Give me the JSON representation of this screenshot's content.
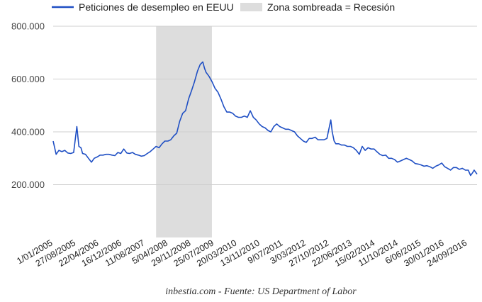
{
  "chart_data": {
    "type": "line",
    "title": "",
    "source_text": "inbestia.com - Fuente: US Department of Labor",
    "xlabel": "",
    "ylabel": "",
    "ylim": [
      0,
      800000
    ],
    "y_ticks": [
      {
        "value": 200000,
        "label": "200.000"
      },
      {
        "value": 400000,
        "label": "400.000"
      },
      {
        "value": 600000,
        "label": "600.000"
      },
      {
        "value": 800000,
        "label": "800.000"
      }
    ],
    "x_range": [
      "2005-01-01",
      "2016-12-31"
    ],
    "x_tick_labels": [
      {
        "date": "2005-01-01",
        "label": "1/01/2005"
      },
      {
        "date": "2005-08-27",
        "label": "27/08/2005"
      },
      {
        "date": "2006-04-22",
        "label": "22/04/2006"
      },
      {
        "date": "2006-12-16",
        "label": "16/12/2006"
      },
      {
        "date": "2007-08-11",
        "label": "11/08/2007"
      },
      {
        "date": "2008-04-05",
        "label": "5/04/2008"
      },
      {
        "date": "2008-11-29",
        "label": "29/11/2008"
      },
      {
        "date": "2009-07-25",
        "label": "25/07/2009"
      },
      {
        "date": "2010-03-20",
        "label": "20/03/2010"
      },
      {
        "date": "2010-11-13",
        "label": "13/11/2010"
      },
      {
        "date": "2011-07-09",
        "label": "9/07/2011"
      },
      {
        "date": "2012-03-03",
        "label": "3/03/2012"
      },
      {
        "date": "2012-10-27",
        "label": "27/10/2012"
      },
      {
        "date": "2013-06-22",
        "label": "22/06/2013"
      },
      {
        "date": "2014-02-15",
        "label": "15/02/2014"
      },
      {
        "date": "2014-10-11",
        "label": "11/10/2014"
      },
      {
        "date": "2015-06-06",
        "label": "6/06/2015"
      },
      {
        "date": "2016-01-30",
        "label": "30/01/2016"
      },
      {
        "date": "2016-09-24",
        "label": "24/09/2016"
      }
    ],
    "recession": {
      "start": "2007-12-01",
      "end": "2009-06-30",
      "label": "Zona sombreada = Recesión",
      "color": "#dddddd"
    },
    "grid": true,
    "legend_position": "top",
    "series": [
      {
        "name": "Peticiones de desempleo en EEUU",
        "color": "#1f4fc4",
        "points": [
          [
            "2005-01-01",
            365000
          ],
          [
            "2005-02-01",
            315000
          ],
          [
            "2005-03-01",
            330000
          ],
          [
            "2005-04-01",
            325000
          ],
          [
            "2005-05-01",
            330000
          ],
          [
            "2005-06-01",
            320000
          ],
          [
            "2005-07-01",
            318000
          ],
          [
            "2005-08-01",
            322000
          ],
          [
            "2005-09-03",
            420000
          ],
          [
            "2005-09-24",
            345000
          ],
          [
            "2005-10-15",
            340000
          ],
          [
            "2005-11-01",
            318000
          ],
          [
            "2005-12-01",
            315000
          ],
          [
            "2006-01-01",
            300000
          ],
          [
            "2006-02-01",
            285000
          ],
          [
            "2006-03-01",
            300000
          ],
          [
            "2006-04-01",
            305000
          ],
          [
            "2006-05-01",
            312000
          ],
          [
            "2006-06-01",
            312000
          ],
          [
            "2006-07-01",
            315000
          ],
          [
            "2006-08-01",
            315000
          ],
          [
            "2006-09-01",
            312000
          ],
          [
            "2006-10-01",
            310000
          ],
          [
            "2006-11-01",
            322000
          ],
          [
            "2006-12-01",
            318000
          ],
          [
            "2007-01-01",
            335000
          ],
          [
            "2007-02-01",
            320000
          ],
          [
            "2007-03-01",
            318000
          ],
          [
            "2007-04-01",
            322000
          ],
          [
            "2007-05-01",
            315000
          ],
          [
            "2007-06-01",
            312000
          ],
          [
            "2007-07-01",
            308000
          ],
          [
            "2007-08-01",
            310000
          ],
          [
            "2007-09-01",
            318000
          ],
          [
            "2007-10-01",
            325000
          ],
          [
            "2007-11-01",
            335000
          ],
          [
            "2007-12-01",
            345000
          ],
          [
            "2008-01-01",
            340000
          ],
          [
            "2008-02-01",
            355000
          ],
          [
            "2008-03-01",
            365000
          ],
          [
            "2008-04-01",
            365000
          ],
          [
            "2008-05-01",
            370000
          ],
          [
            "2008-06-01",
            385000
          ],
          [
            "2008-07-01",
            395000
          ],
          [
            "2008-08-01",
            440000
          ],
          [
            "2008-09-01",
            470000
          ],
          [
            "2008-10-01",
            480000
          ],
          [
            "2008-11-01",
            525000
          ],
          [
            "2008-12-01",
            555000
          ],
          [
            "2009-01-01",
            590000
          ],
          [
            "2009-02-01",
            630000
          ],
          [
            "2009-03-01",
            655000
          ],
          [
            "2009-03-28",
            665000
          ],
          [
            "2009-04-15",
            640000
          ],
          [
            "2009-05-01",
            625000
          ],
          [
            "2009-06-01",
            610000
          ],
          [
            "2009-07-01",
            590000
          ],
          [
            "2009-08-01",
            565000
          ],
          [
            "2009-09-01",
            550000
          ],
          [
            "2009-10-01",
            525000
          ],
          [
            "2009-11-01",
            495000
          ],
          [
            "2009-12-01",
            475000
          ],
          [
            "2010-01-01",
            475000
          ],
          [
            "2010-02-01",
            470000
          ],
          [
            "2010-03-01",
            460000
          ],
          [
            "2010-04-01",
            455000
          ],
          [
            "2010-05-01",
            455000
          ],
          [
            "2010-06-01",
            460000
          ],
          [
            "2010-07-01",
            455000
          ],
          [
            "2010-08-01",
            480000
          ],
          [
            "2010-09-01",
            455000
          ],
          [
            "2010-10-01",
            445000
          ],
          [
            "2010-11-01",
            430000
          ],
          [
            "2010-12-01",
            420000
          ],
          [
            "2011-01-01",
            415000
          ],
          [
            "2011-02-01",
            405000
          ],
          [
            "2011-03-01",
            400000
          ],
          [
            "2011-04-01",
            420000
          ],
          [
            "2011-05-01",
            430000
          ],
          [
            "2011-06-01",
            420000
          ],
          [
            "2011-07-01",
            415000
          ],
          [
            "2011-08-01",
            410000
          ],
          [
            "2011-09-01",
            410000
          ],
          [
            "2011-10-01",
            405000
          ],
          [
            "2011-11-01",
            400000
          ],
          [
            "2011-12-01",
            385000
          ],
          [
            "2012-01-01",
            375000
          ],
          [
            "2012-02-01",
            365000
          ],
          [
            "2012-03-01",
            360000
          ],
          [
            "2012-04-01",
            375000
          ],
          [
            "2012-05-01",
            375000
          ],
          [
            "2012-06-01",
            380000
          ],
          [
            "2012-07-01",
            370000
          ],
          [
            "2012-08-01",
            370000
          ],
          [
            "2012-09-01",
            370000
          ],
          [
            "2012-10-01",
            375000
          ],
          [
            "2012-11-10",
            445000
          ],
          [
            "2012-11-25",
            400000
          ],
          [
            "2012-12-15",
            365000
          ],
          [
            "2013-01-01",
            355000
          ],
          [
            "2013-02-01",
            355000
          ],
          [
            "2013-03-01",
            350000
          ],
          [
            "2013-04-01",
            350000
          ],
          [
            "2013-05-01",
            345000
          ],
          [
            "2013-06-01",
            345000
          ],
          [
            "2013-07-01",
            340000
          ],
          [
            "2013-08-01",
            330000
          ],
          [
            "2013-09-01",
            315000
          ],
          [
            "2013-10-01",
            345000
          ],
          [
            "2013-11-01",
            330000
          ],
          [
            "2013-12-01",
            340000
          ],
          [
            "2014-01-01",
            335000
          ],
          [
            "2014-02-01",
            335000
          ],
          [
            "2014-03-01",
            325000
          ],
          [
            "2014-04-01",
            315000
          ],
          [
            "2014-05-01",
            310000
          ],
          [
            "2014-06-01",
            312000
          ],
          [
            "2014-07-01",
            300000
          ],
          [
            "2014-08-01",
            300000
          ],
          [
            "2014-09-01",
            295000
          ],
          [
            "2014-10-01",
            285000
          ],
          [
            "2014-11-01",
            290000
          ],
          [
            "2014-12-01",
            295000
          ],
          [
            "2015-01-01",
            300000
          ],
          [
            "2015-02-01",
            295000
          ],
          [
            "2015-03-01",
            290000
          ],
          [
            "2015-04-01",
            280000
          ],
          [
            "2015-05-01",
            278000
          ],
          [
            "2015-06-01",
            275000
          ],
          [
            "2015-07-01",
            270000
          ],
          [
            "2015-08-01",
            272000
          ],
          [
            "2015-09-01",
            268000
          ],
          [
            "2015-10-01",
            262000
          ],
          [
            "2015-11-01",
            270000
          ],
          [
            "2015-12-01",
            275000
          ],
          [
            "2016-01-01",
            282000
          ],
          [
            "2016-02-01",
            268000
          ],
          [
            "2016-03-01",
            262000
          ],
          [
            "2016-04-01",
            255000
          ],
          [
            "2016-05-01",
            265000
          ],
          [
            "2016-06-01",
            265000
          ],
          [
            "2016-07-01",
            258000
          ],
          [
            "2016-08-01",
            262000
          ],
          [
            "2016-09-01",
            255000
          ],
          [
            "2016-10-01",
            255000
          ],
          [
            "2016-10-25",
            235000
          ],
          [
            "2016-11-15",
            245000
          ],
          [
            "2016-12-01",
            255000
          ],
          [
            "2016-12-31",
            240000
          ]
        ]
      }
    ]
  }
}
